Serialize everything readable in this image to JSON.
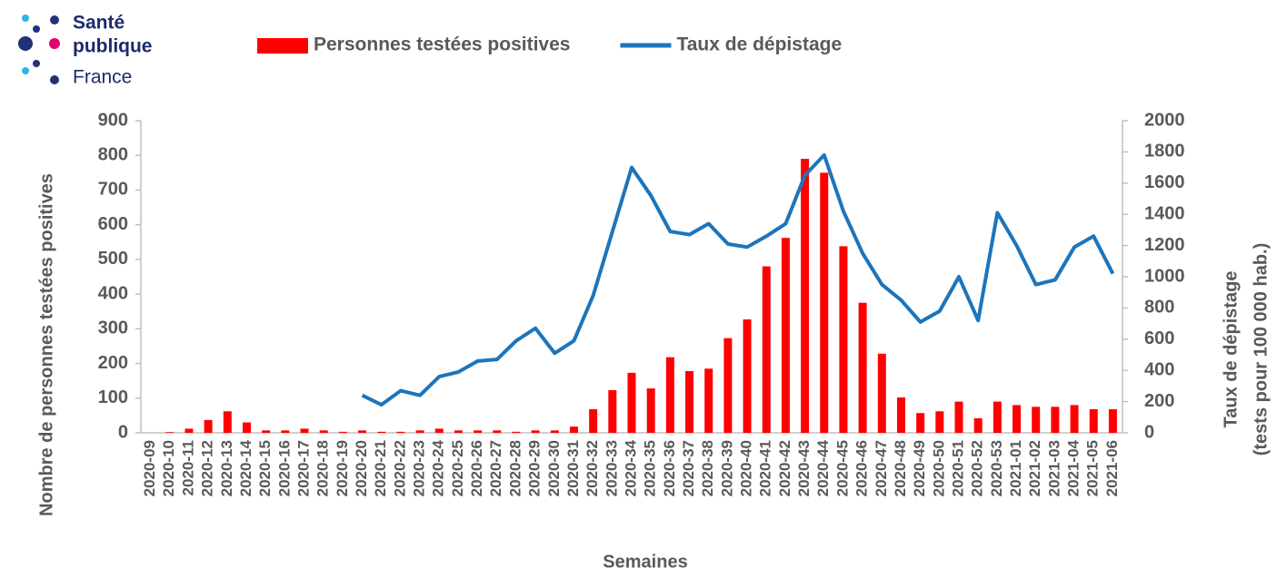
{
  "logo": {
    "lines": [
      "Santé",
      "publique",
      "France"
    ]
  },
  "chart_data": {
    "type": "bar-line",
    "legend": "top",
    "xlabel": "Semaines",
    "ylabel": "Nombre de personnes testées positives",
    "y2label": [
      "Taux de dépistage",
      "(tests pour 100 000 hab.)"
    ],
    "categories": [
      "2020-09",
      "2020-10",
      "2020-11",
      "2020-12",
      "2020-13",
      "2020-14",
      "2020-15",
      "2020-16",
      "2020-17",
      "2020-18",
      "2020-19",
      "2020-20",
      "2020-21",
      "2020-22",
      "2020-23",
      "2020-24",
      "2020-25",
      "2020-26",
      "2020-27",
      "2020-28",
      "2020-29",
      "2020-30",
      "2020-31",
      "2020-32",
      "2020-33",
      "2020-34",
      "2020-35",
      "2020-36",
      "2020-37",
      "2020-38",
      "2020-39",
      "2020-40",
      "2020-41",
      "2020-42",
      "2020-43",
      "2020-44",
      "2020-45",
      "2020-46",
      "2020-47",
      "2020-48",
      "2020-49",
      "2020-50",
      "2020-51",
      "2020-52",
      "2020-53",
      "2021-01",
      "2021-02",
      "2021-03",
      "2021-04",
      "2021-05",
      "2021-06"
    ],
    "series": [
      {
        "name": "Personnes testées positives",
        "type": "bar",
        "color": "#ff0000",
        "axis": "y",
        "values": [
          0,
          2,
          12,
          37,
          62,
          30,
          7,
          7,
          12,
          7,
          3,
          7,
          3,
          3,
          7,
          12,
          7,
          7,
          7,
          3,
          7,
          7,
          18,
          68,
          123,
          173,
          128,
          218,
          178,
          185,
          273,
          327,
          480,
          562,
          790,
          750,
          538,
          375,
          228,
          102,
          57,
          62,
          90,
          42,
          90,
          80,
          75,
          75,
          80,
          68,
          68
        ]
      },
      {
        "name": "Taux de dépistage",
        "type": "line",
        "color": "#1b75bc",
        "axis": "y2",
        "values": [
          null,
          null,
          null,
          null,
          null,
          null,
          null,
          null,
          null,
          null,
          null,
          240,
          180,
          270,
          240,
          360,
          390,
          460,
          470,
          590,
          670,
          510,
          590,
          880,
          1290,
          1700,
          1520,
          1290,
          1270,
          1340,
          1210,
          1190,
          1260,
          1340,
          1650,
          1780,
          1420,
          1150,
          950,
          850,
          710,
          780,
          1000,
          720,
          1410,
          1200,
          950,
          980,
          1190,
          1260,
          1020
        ]
      }
    ],
    "ylim": [
      0,
      900
    ],
    "yticks": [
      0,
      100,
      200,
      300,
      400,
      500,
      600,
      700,
      800,
      900
    ],
    "y2lim": [
      0,
      2000
    ],
    "y2ticks": [
      0,
      200,
      400,
      600,
      800,
      1000,
      1200,
      1400,
      1600,
      1800,
      2000
    ]
  }
}
